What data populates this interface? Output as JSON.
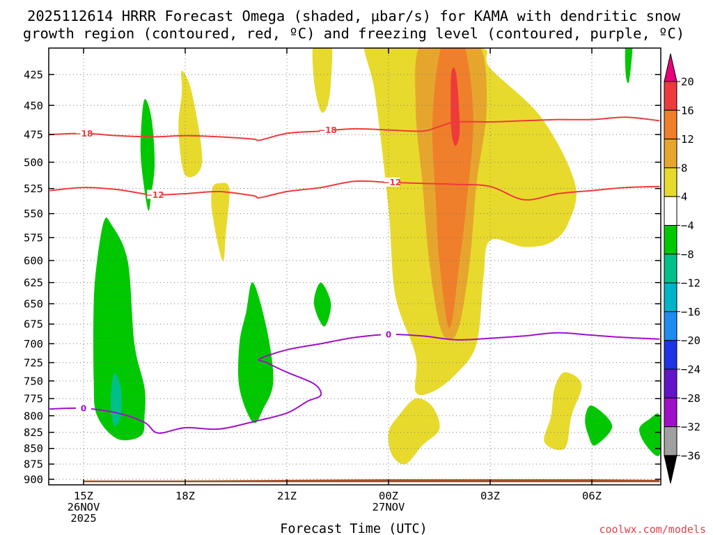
{
  "chart_data": {
    "type": "time-height contour",
    "title_lines": [
      "2025112614 HRRR Forecast Omega (shaded, μbar/s) for KAMA with dendritic snow",
      "growth region (contoured, red, ºC) and freezing level (contoured, purple, ºC)"
    ],
    "xlabel": "Forecast Time (UTC)",
    "ylabel": "",
    "x_ticks": [
      {
        "hour": 15,
        "lines": [
          "15Z",
          "26NOV",
          "2025"
        ]
      },
      {
        "hour": 18,
        "lines": [
          "18Z"
        ]
      },
      {
        "hour": 21,
        "lines": [
          "21Z"
        ]
      },
      {
        "hour": 24,
        "lines": [
          "00Z",
          "27NOV"
        ]
      },
      {
        "hour": 27,
        "lines": [
          "03Z"
        ]
      },
      {
        "hour": 30,
        "lines": [
          "06Z"
        ]
      }
    ],
    "xlim": [
      14.0,
      32.0
    ],
    "y_ticks": [
      "425",
      "450",
      "475",
      "500",
      "525",
      "550",
      "575",
      "600",
      "625",
      "650",
      "675",
      "700",
      "725",
      "750",
      "775",
      "800",
      "825",
      "850",
      "875",
      "900"
    ],
    "ylim_mb": [
      400,
      905
    ],
    "colorbar": {
      "levels": [
        "20",
        "16",
        "12",
        "8",
        "4",
        "−4",
        "−8",
        "−12",
        "−16",
        "−20",
        "−24",
        "−28",
        "−32",
        "−36"
      ],
      "colors": [
        "#e8007a",
        "#ee3a3a",
        "#ef7f2a",
        "#e6a62e",
        "#e8da2c",
        "#ffffff",
        "#00c800",
        "#00c08a",
        "#00b4c8",
        "#1e8cf0",
        "#1e32e6",
        "#6414c8",
        "#a010c8",
        "#a0a0a0",
        "#000000"
      ],
      "units": "μbar/s"
    },
    "contours": [
      {
        "name": "dgz -18C",
        "color": "#ef3a3a",
        "label": "−18",
        "points": [
          [
            14.0,
            475
          ],
          [
            15.0,
            474
          ],
          [
            16.0,
            476
          ],
          [
            17.0,
            477
          ],
          [
            18.0,
            476
          ],
          [
            19.0,
            477
          ],
          [
            20.0,
            479
          ],
          [
            20.2,
            480
          ],
          [
            21.0,
            474
          ],
          [
            22.0,
            472
          ],
          [
            23.0,
            470
          ],
          [
            24.0,
            471
          ],
          [
            25.0,
            472
          ],
          [
            25.5,
            468
          ],
          [
            26.0,
            464
          ],
          [
            27.0,
            464
          ],
          [
            28.0,
            463
          ],
          [
            29.0,
            462
          ],
          [
            30.0,
            462
          ],
          [
            31.0,
            460
          ],
          [
            32.0,
            463
          ]
        ],
        "label_at": [
          [
            15.0,
            474
          ],
          [
            22.2,
            471
          ]
        ]
      },
      {
        "name": "dgz -12C",
        "color": "#ef3a3a",
        "label": "−12",
        "points": [
          [
            14.0,
            527
          ],
          [
            15.0,
            524
          ],
          [
            16.0,
            526
          ],
          [
            17.0,
            531
          ],
          [
            18.0,
            530
          ],
          [
            19.0,
            528
          ],
          [
            20.0,
            532
          ],
          [
            20.2,
            534
          ],
          [
            21.0,
            528
          ],
          [
            22.0,
            524
          ],
          [
            23.0,
            518
          ],
          [
            24.0,
            519
          ],
          [
            25.0,
            520
          ],
          [
            26.0,
            521
          ],
          [
            27.0,
            523
          ],
          [
            28.0,
            536
          ],
          [
            29.0,
            530
          ],
          [
            30.0,
            527
          ],
          [
            31.0,
            524
          ],
          [
            32.0,
            523
          ]
        ],
        "label_at": [
          [
            17.1,
            531
          ],
          [
            24.1,
            519
          ]
        ]
      },
      {
        "name": "freezing level 0C",
        "color": "#a010c8",
        "label": "0",
        "points": [
          [
            14.0,
            790
          ],
          [
            15.0,
            789
          ],
          [
            16.0,
            796
          ],
          [
            16.8,
            810
          ],
          [
            17.2,
            826
          ],
          [
            18.0,
            818
          ],
          [
            19.0,
            820
          ],
          [
            20.0,
            809
          ],
          [
            21.0,
            796
          ],
          [
            21.6,
            779
          ],
          [
            22.0,
            770
          ],
          [
            21.8,
            754
          ],
          [
            21.0,
            738
          ],
          [
            20.4,
            725
          ],
          [
            20.2,
            720
          ],
          [
            21.0,
            708
          ],
          [
            22.0,
            700
          ],
          [
            23.0,
            692
          ],
          [
            24.0,
            688
          ],
          [
            25.0,
            690
          ],
          [
            26.0,
            695
          ],
          [
            27.0,
            693
          ],
          [
            28.0,
            690
          ],
          [
            29.0,
            686
          ],
          [
            30.0,
            689
          ],
          [
            31.0,
            692
          ],
          [
            32.0,
            694
          ]
        ],
        "label_at": [
          [
            15.0,
            789
          ],
          [
            24.0,
            688
          ]
        ]
      }
    ],
    "shaded_regions": [
      {
        "name": "lift >4 upper",
        "fill": "#e8da2c",
        "points": [
          [
            21.8,
            400
          ],
          [
            22.3,
            400
          ],
          [
            22.3,
            430
          ],
          [
            22.2,
            450
          ],
          [
            22.0,
            455
          ],
          [
            21.8,
            430
          ]
        ]
      },
      {
        "name": "lift >4 main plume",
        "fill": "#e8da2c",
        "points": [
          [
            23.3,
            400
          ],
          [
            24.3,
            400
          ],
          [
            25.3,
            405
          ],
          [
            26.8,
            405
          ],
          [
            27.0,
            420
          ],
          [
            28.5,
            460
          ],
          [
            29.5,
            520
          ],
          [
            29.3,
            560
          ],
          [
            28.8,
            580
          ],
          [
            28.0,
            585
          ],
          [
            27.0,
            578
          ],
          [
            26.8,
            620
          ],
          [
            26.6,
            700
          ],
          [
            26.0,
            740
          ],
          [
            25.3,
            765
          ],
          [
            24.8,
            765
          ],
          [
            24.8,
            715
          ],
          [
            24.2,
            640
          ],
          [
            24.0,
            545
          ],
          [
            23.6,
            440
          ]
        ]
      },
      {
        "name": "lift >8 main",
        "fill": "#e6a62e",
        "points": [
          [
            25.0,
            400
          ],
          [
            26.6,
            400
          ],
          [
            26.9,
            450
          ],
          [
            26.6,
            520
          ],
          [
            26.4,
            600
          ],
          [
            26.1,
            675
          ],
          [
            25.8,
            695
          ],
          [
            25.5,
            675
          ],
          [
            25.2,
            600
          ],
          [
            25.0,
            520
          ],
          [
            24.8,
            450
          ]
        ]
      },
      {
        "name": "lift >12 core",
        "fill": "#ef7f2a",
        "points": [
          [
            25.6,
            400
          ],
          [
            26.2,
            400
          ],
          [
            26.5,
            460
          ],
          [
            26.3,
            540
          ],
          [
            26.1,
            600
          ],
          [
            25.8,
            680
          ],
          [
            25.5,
            600
          ],
          [
            25.4,
            540
          ],
          [
            25.3,
            460
          ]
        ]
      },
      {
        "name": "lift >16 core",
        "fill": "#ee3a3a",
        "points": [
          [
            25.85,
            425
          ],
          [
            26.0,
            425
          ],
          [
            26.1,
            470
          ],
          [
            25.98,
            485
          ],
          [
            25.85,
            470
          ]
        ]
      },
      {
        "name": "lift >4 cell 18Z",
        "fill": "#e8da2c",
        "points": [
          [
            17.9,
            422
          ],
          [
            18.2,
            440
          ],
          [
            18.5,
            500
          ],
          [
            18.0,
            512
          ],
          [
            17.8,
            470
          ],
          [
            17.9,
            440
          ]
        ]
      },
      {
        "name": "lift >4 cell 19Z",
        "fill": "#e8da2c",
        "points": [
          [
            19.0,
            520
          ],
          [
            19.3,
            525
          ],
          [
            19.2,
            570
          ],
          [
            19.1,
            600
          ],
          [
            18.8,
            550
          ],
          [
            18.8,
            525
          ]
        ]
      },
      {
        "name": "lift >4 low 01Z",
        "fill": "#e8da2c",
        "points": [
          [
            24.8,
            775
          ],
          [
            25.3,
            787
          ],
          [
            25.5,
            820
          ],
          [
            25.0,
            845
          ],
          [
            24.5,
            875
          ],
          [
            24.1,
            860
          ],
          [
            24.0,
            825
          ],
          [
            24.3,
            800
          ]
        ]
      },
      {
        "name": "lift >4 low 05Z",
        "fill": "#e8da2c",
        "points": [
          [
            29.2,
            738
          ],
          [
            29.7,
            755
          ],
          [
            29.4,
            800
          ],
          [
            29.2,
            850
          ],
          [
            28.6,
            840
          ],
          [
            28.8,
            800
          ],
          [
            28.9,
            760
          ]
        ]
      },
      {
        "name": "sink green left column",
        "fill": "#00c800",
        "points": [
          [
            15.6,
            558
          ],
          [
            15.8,
            560
          ],
          [
            16.3,
            600
          ],
          [
            16.5,
            700
          ],
          [
            16.8,
            760
          ],
          [
            16.8,
            800
          ],
          [
            16.7,
            830
          ],
          [
            16.0,
            835
          ],
          [
            15.4,
            800
          ],
          [
            15.3,
            750
          ],
          [
            15.3,
            650
          ],
          [
            15.4,
            600
          ]
        ]
      },
      {
        "name": "sink teal left column",
        "fill": "#00c08a",
        "points": [
          [
            15.9,
            740
          ],
          [
            16.1,
            760
          ],
          [
            16.1,
            800
          ],
          [
            15.9,
            815
          ],
          [
            15.8,
            780
          ]
        ]
      },
      {
        "name": "sink green 17Z",
        "fill": "#00c800",
        "points": [
          [
            16.8,
            445
          ],
          [
            17.0,
            460
          ],
          [
            17.1,
            500
          ],
          [
            17.0,
            530
          ],
          [
            16.9,
            546
          ],
          [
            16.7,
            500
          ],
          [
            16.7,
            470
          ]
        ]
      },
      {
        "name": "sink green 20Z",
        "fill": "#00c800",
        "points": [
          [
            20.0,
            625
          ],
          [
            20.4,
            680
          ],
          [
            20.6,
            750
          ],
          [
            20.3,
            790
          ],
          [
            20.0,
            810
          ],
          [
            19.6,
            760
          ],
          [
            19.6,
            700
          ],
          [
            19.8,
            660
          ]
        ]
      },
      {
        "name": "sink green 22Z",
        "fill": "#00c800",
        "points": [
          [
            22.0,
            625
          ],
          [
            22.3,
            650
          ],
          [
            22.1,
            678
          ],
          [
            21.8,
            650
          ]
        ]
      },
      {
        "name": "sink green 06Z",
        "fill": "#00c800",
        "points": [
          [
            30.0,
            785
          ],
          [
            30.6,
            815
          ],
          [
            30.1,
            845
          ],
          [
            29.9,
            830
          ],
          [
            29.8,
            805
          ]
        ]
      },
      {
        "name": "sink green 08Z",
        "fill": "#00c800",
        "points": [
          [
            31.7,
            805
          ],
          [
            32.0,
            800
          ],
          [
            32.0,
            860
          ],
          [
            31.6,
            845
          ],
          [
            31.4,
            820
          ]
        ]
      },
      {
        "name": "sink green top 07Z",
        "fill": "#00c800",
        "points": [
          [
            31.0,
            400
          ],
          [
            31.2,
            400
          ],
          [
            31.1,
            430
          ],
          [
            31.0,
            425
          ]
        ]
      }
    ],
    "terrain": {
      "name": "ground",
      "fill": "#a0522d",
      "points": [
        [
          15.0,
          902
        ],
        [
          18.0,
          902
        ],
        [
          21.0,
          901
        ],
        [
          24.0,
          900
        ],
        [
          27.0,
          900
        ],
        [
          30.0,
          900
        ],
        [
          32.0,
          901
        ],
        [
          32.0,
          905
        ],
        [
          15.0,
          905
        ]
      ]
    }
  },
  "credit": "coolwx.com/models"
}
